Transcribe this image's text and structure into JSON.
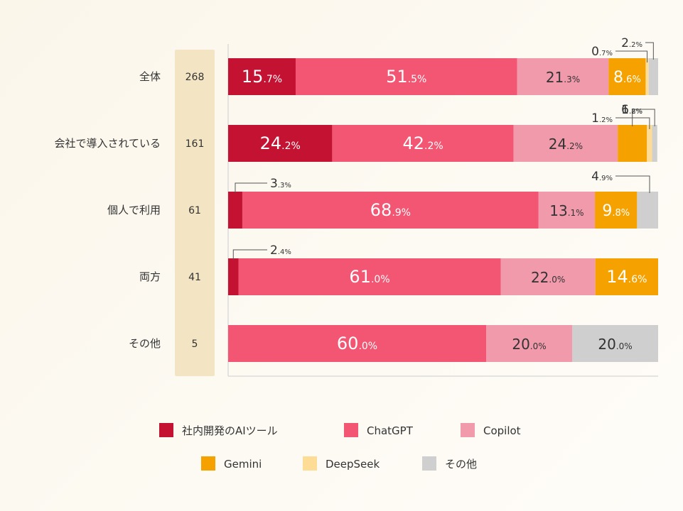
{
  "chart_data": {
    "type": "bar",
    "orientation": "horizontal-stacked-100",
    "categories": [
      "全体",
      "会社で導入されている",
      "個人で利用",
      "両方",
      "その他"
    ],
    "n": [
      "268",
      "161",
      "61",
      "41",
      "5"
    ],
    "series": [
      {
        "name": "社内開発のAIツール",
        "color": "#c41232",
        "values": [
          15.7,
          24.2,
          3.3,
          2.4,
          0
        ]
      },
      {
        "name": "ChatGPT",
        "color": "#f25672",
        "values": [
          51.5,
          42.2,
          68.9,
          61.0,
          60.0
        ]
      },
      {
        "name": "Copilot",
        "color": "#f09aab",
        "values": [
          21.3,
          24.2,
          13.1,
          22.0,
          20.0
        ]
      },
      {
        "name": "Gemini",
        "color": "#f5a200",
        "values": [
          8.6,
          6.8,
          9.8,
          14.6,
          0
        ]
      },
      {
        "name": "DeepSeek",
        "color": "#fddc96",
        "values": [
          0.7,
          1.2,
          0,
          0,
          0
        ]
      },
      {
        "name": "その他",
        "color": "#cfcfcf",
        "values": [
          2.2,
          1.2,
          4.9,
          0,
          20.0
        ]
      }
    ],
    "xlim": [
      0,
      100
    ],
    "legend_position": "bottom"
  },
  "colors": {
    "n_column": "#f3e4c3",
    "axis": "#cccccc",
    "leader": "#555555",
    "label_dark": "#333333",
    "label_light": "#ffffff"
  }
}
